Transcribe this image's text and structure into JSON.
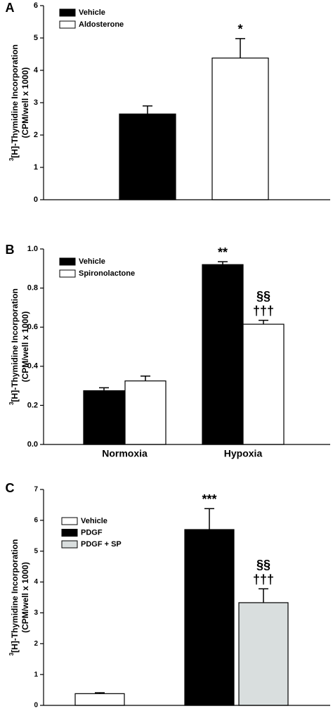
{
  "chart_data": [
    {
      "type": "bar",
      "panel_label": "A",
      "ylabel_sup": "3",
      "ylabel": "[H]-Thymidine Incorporation",
      "ylabel2": "(CPM/well x 1000)",
      "categories": [
        null
      ],
      "series": [
        {
          "name": "Vehicle",
          "color": "#000000",
          "values": [
            2.65
          ],
          "errors": [
            0.25
          ],
          "annotations": [
            null
          ]
        },
        {
          "name": "Aldosterone",
          "color": "#ffffff",
          "values": [
            4.38
          ],
          "errors": [
            0.6
          ],
          "annotations": [
            [
              "*"
            ]
          ]
        }
      ],
      "ylim": [
        0,
        6
      ],
      "yticks": [
        0,
        1,
        2,
        3,
        4,
        5,
        6
      ],
      "legend": "upper left"
    },
    {
      "type": "bar",
      "panel_label": "B",
      "ylabel_sup": "3",
      "ylabel": "[H]-Thymidine Incorporation",
      "ylabel2": "(CPM/well x 1000)",
      "categories": [
        "Normoxia",
        "Hypoxia"
      ],
      "series": [
        {
          "name": "Vehicle",
          "color": "#000000",
          "values": [
            0.275,
            0.92
          ],
          "errors": [
            0.015,
            0.015
          ],
          "annotations": [
            null,
            [
              "**"
            ]
          ]
        },
        {
          "name": "Spironolactone",
          "color": "#ffffff",
          "values": [
            0.325,
            0.615
          ],
          "errors": [
            0.025,
            0.02
          ],
          "annotations": [
            null,
            [
              "§§",
              "†††"
            ]
          ]
        }
      ],
      "ylim": [
        0,
        1
      ],
      "yticks": [
        {
          "value": 0,
          "label": "0.0"
        },
        0.2,
        0.4,
        0.6,
        0.8,
        {
          "value": 1,
          "label": "1.0"
        }
      ],
      "legend": "upper left"
    },
    {
      "type": "bar",
      "panel_label": "C",
      "ylabel_sup": "3",
      "ylabel": "[H]-Thymidine Incorporation",
      "ylabel2": "(CPM/well x 1000)",
      "categories": [
        null
      ],
      "series": [
        {
          "name": "Vehicle",
          "color": "#ffffff",
          "values": [
            0.38
          ],
          "errors": [
            0.03
          ],
          "annotations": [
            null
          ]
        },
        {
          "name": "PDGF",
          "color": "#000000",
          "values": [
            5.7
          ],
          "errors": [
            0.68
          ],
          "annotations": [
            [
              "***"
            ]
          ]
        },
        {
          "name": "PDGF + SP",
          "color": "#d9dede",
          "values": [
            3.33
          ],
          "errors": [
            0.45
          ],
          "annotations": [
            [
              "§§",
              "†††"
            ]
          ]
        }
      ],
      "ylim": [
        0,
        7
      ],
      "yticks": [
        0,
        1,
        2,
        3,
        4,
        5,
        6,
        7
      ],
      "legend": "upper left"
    }
  ]
}
